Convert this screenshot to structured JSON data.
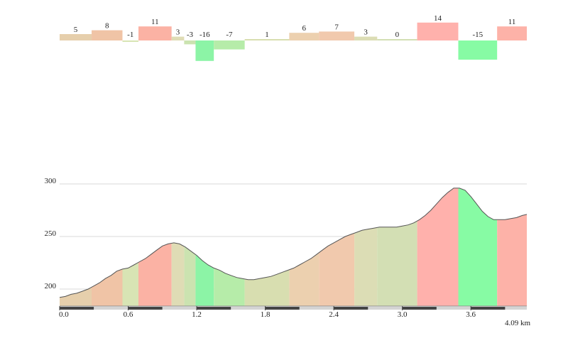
{
  "chart_data": {
    "type": "area",
    "title": "",
    "xlabel": "",
    "ylabel": "",
    "x_unit_label": "4.09 km",
    "x_range": [
      0,
      4.09
    ],
    "ylim": [
      185,
      305
    ],
    "yticks": [
      200,
      250,
      300
    ],
    "xticks": [
      0.0,
      0.6,
      1.2,
      1.8,
      2.4,
      3.0,
      3.6
    ],
    "xtick_labels": [
      "0.0",
      "0.6",
      "1.2",
      "1.8",
      "2.4",
      "3.0",
      "3.6"
    ],
    "grid": true,
    "profile": {
      "x": [
        0,
        0.05,
        0.1,
        0.15,
        0.2,
        0.25,
        0.3,
        0.35,
        0.4,
        0.45,
        0.5,
        0.55,
        0.6,
        0.65,
        0.7,
        0.75,
        0.8,
        0.85,
        0.9,
        0.95,
        1.0,
        1.05,
        1.1,
        1.15,
        1.2,
        1.25,
        1.3,
        1.35,
        1.4,
        1.45,
        1.5,
        1.55,
        1.6,
        1.65,
        1.7,
        1.75,
        1.8,
        1.85,
        1.9,
        1.95,
        2.0,
        2.05,
        2.1,
        2.15,
        2.2,
        2.25,
        2.3,
        2.35,
        2.4,
        2.45,
        2.5,
        2.55,
        2.6,
        2.65,
        2.7,
        2.75,
        2.8,
        2.85,
        2.9,
        2.95,
        3.0,
        3.05,
        3.1,
        3.15,
        3.2,
        3.25,
        3.3,
        3.35,
        3.4,
        3.45,
        3.5,
        3.55,
        3.6,
        3.65,
        3.7,
        3.75,
        3.8,
        3.85,
        3.9,
        3.95,
        4.0,
        4.05,
        4.09
      ],
      "elevation": [
        192,
        193,
        195,
        196,
        198,
        200,
        203,
        206,
        210,
        213,
        217,
        219,
        220,
        223,
        226,
        229,
        233,
        237,
        241,
        243,
        244,
        243,
        240,
        236,
        232,
        227,
        223,
        220,
        218,
        215,
        213,
        211,
        210,
        209,
        209,
        210,
        211,
        212,
        214,
        216,
        218,
        220,
        223,
        226,
        229,
        233,
        237,
        241,
        244,
        247,
        250,
        252,
        254,
        256,
        257,
        258,
        259,
        259,
        259,
        259,
        260,
        261,
        263,
        266,
        270,
        275,
        281,
        287,
        292,
        296,
        296,
        294,
        288,
        281,
        274,
        269,
        266,
        266,
        266,
        267,
        268,
        270,
        271
      ]
    },
    "segments": [
      {
        "start": 0.0,
        "end": 0.28,
        "gradient": "5",
        "color": "#e6cfac"
      },
      {
        "start": 0.28,
        "end": 0.55,
        "gradient": "8",
        "color": "#f0c4a6"
      },
      {
        "start": 0.55,
        "end": 0.69,
        "gradient": "-1",
        "color": "#d8e4b4"
      },
      {
        "start": 0.69,
        "end": 0.98,
        "gradient": "11",
        "color": "#fbb2a4"
      },
      {
        "start": 0.98,
        "end": 1.09,
        "gradient": "3",
        "color": "#dfdcb5"
      },
      {
        "start": 1.09,
        "end": 1.19,
        "gradient": "-3",
        "color": "#cbe3b0"
      },
      {
        "start": 1.19,
        "end": 1.35,
        "gradient": "-16",
        "color": "#8cf4a6"
      },
      {
        "start": 1.35,
        "end": 1.62,
        "gradient": "-7",
        "color": "#b6eca9"
      },
      {
        "start": 1.62,
        "end": 2.01,
        "gradient": "1",
        "color": "#d8deb0"
      },
      {
        "start": 2.01,
        "end": 2.27,
        "gradient": "6",
        "color": "#ecd0af"
      },
      {
        "start": 2.27,
        "end": 2.58,
        "gradient": "7",
        "color": "#f1c9ad"
      },
      {
        "start": 2.58,
        "end": 2.78,
        "gradient": "3",
        "color": "#dcddb5"
      },
      {
        "start": 2.78,
        "end": 3.13,
        "gradient": "0",
        "color": "#d3dfb4"
      },
      {
        "start": 3.13,
        "end": 3.49,
        "gradient": "14",
        "color": "#ffb1ac"
      },
      {
        "start": 3.49,
        "end": 3.83,
        "gradient": "-15",
        "color": "#87fba4"
      },
      {
        "start": 3.83,
        "end": 4.09,
        "gradient": "11",
        "color": "#fdb2a8"
      }
    ]
  }
}
